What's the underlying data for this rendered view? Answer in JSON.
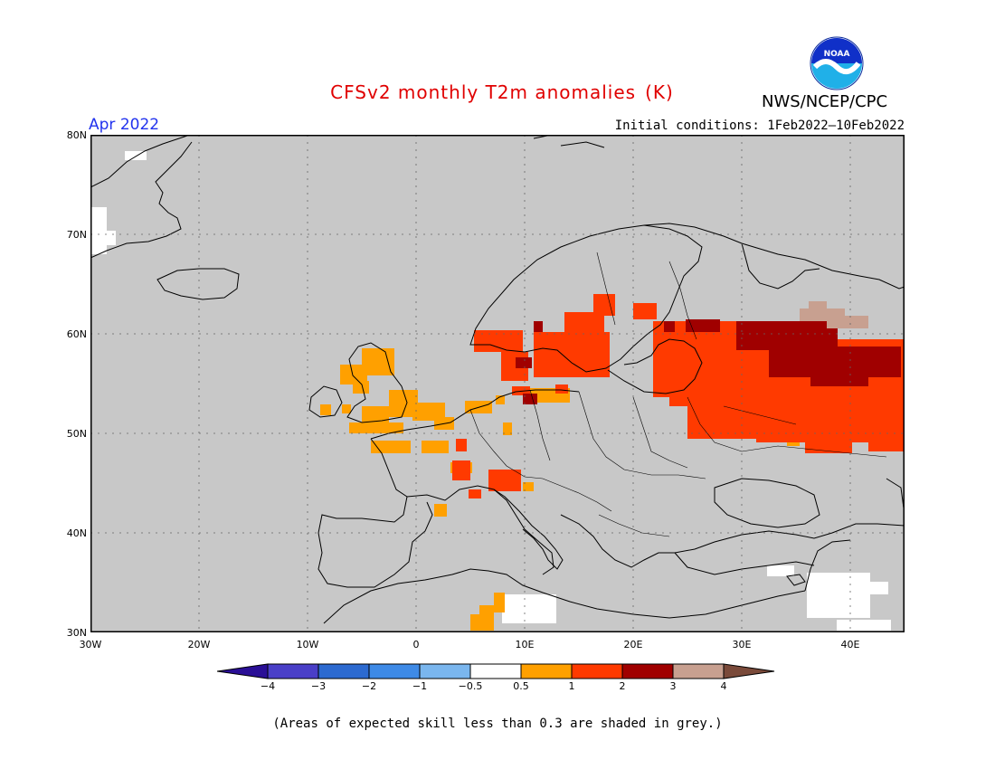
{
  "title": "CFSv2 monthly T2m anomalies",
  "units": "(K)",
  "period": "Apr 2022",
  "initial_conditions": "Initial conditions: 1Feb2022–10Feb2022",
  "organization": "NWS/NCEP/CPC",
  "logo_text": "NOAA",
  "lat_labels": [
    "80N",
    "70N",
    "60N",
    "50N",
    "40N",
    "30N"
  ],
  "lon_labels": [
    "30W",
    "20W",
    "10W",
    "0",
    "10E",
    "20E",
    "30E",
    "40E"
  ],
  "colorbar": {
    "ticks": [
      "−4",
      "−3",
      "−2",
      "−1",
      "−0.5",
      "0.5",
      "1",
      "2",
      "3",
      "4"
    ],
    "colors": [
      "#2a0f96",
      "#4a3fc8",
      "#2c6ad0",
      "#3e8ae6",
      "#7ab6ee",
      "#ffffff",
      "#ffa000",
      "#ff3a00",
      "#a00000",
      "#c8a090",
      "#7a4a3a"
    ]
  },
  "note": "(Areas of expected skill less than 0.3 are shaded in grey.)",
  "colors": {
    "mask_grey": "#c8c8c8",
    "title_red": "#e00000",
    "period_blue": "#2233ee"
  }
}
